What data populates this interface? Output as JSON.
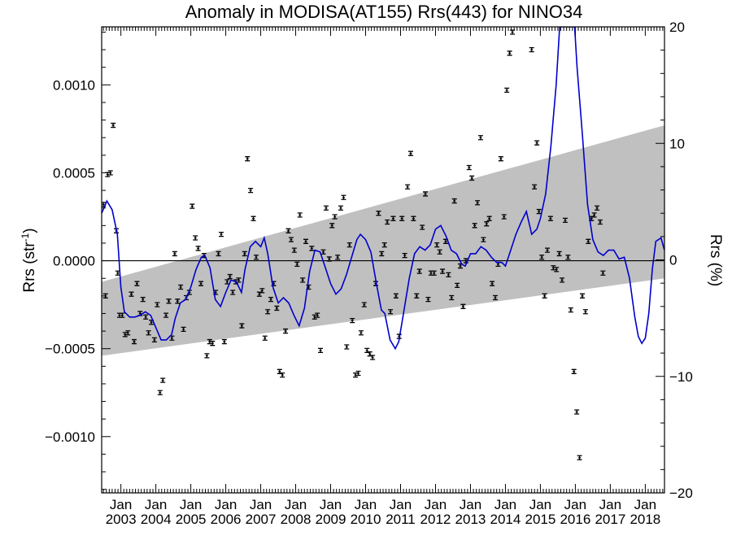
{
  "chart_data": {
    "type": "line",
    "title": "Anomaly in MODISA(AT155) Rrs(443) for NINO34",
    "ylabel": "Rrs (str",
    "ylabel_sup": "-1",
    "ylabel_close": ")",
    "y2label": "Rrs (%)",
    "xlim": [
      2002.45,
      2018.55
    ],
    "ylim": [
      -0.00132,
      0.00133
    ],
    "y2lim": [
      -20.0,
      20.0
    ],
    "grid": false,
    "legend": "none",
    "xticks": [
      {
        "x": 2003,
        "month": "Jan",
        "year": "2003"
      },
      {
        "x": 2004,
        "month": "Jan",
        "year": "2004"
      },
      {
        "x": 2005,
        "month": "Jan",
        "year": "2005"
      },
      {
        "x": 2006,
        "month": "Jan",
        "year": "2006"
      },
      {
        "x": 2007,
        "month": "Jan",
        "year": "2007"
      },
      {
        "x": 2008,
        "month": "Jan",
        "year": "2008"
      },
      {
        "x": 2009,
        "month": "Jan",
        "year": "2009"
      },
      {
        "x": 2010,
        "month": "Jan",
        "year": "2010"
      },
      {
        "x": 2011,
        "month": "Jan",
        "year": "2011"
      },
      {
        "x": 2012,
        "month": "Jan",
        "year": "2012"
      },
      {
        "x": 2013,
        "month": "Jan",
        "year": "2013"
      },
      {
        "x": 2014,
        "month": "Jan",
        "year": "2014"
      },
      {
        "x": 2015,
        "month": "Jan",
        "year": "2015"
      },
      {
        "x": 2016,
        "month": "Jan",
        "year": "2016"
      },
      {
        "x": 2017,
        "month": "Jan",
        "year": "2017"
      },
      {
        "x": 2018,
        "month": "Jan",
        "year": "2018"
      }
    ],
    "yticks": [
      {
        "v": 0.001,
        "label": "0.0010"
      },
      {
        "v": 0.0005,
        "label": "0.0005"
      },
      {
        "v": 0.0,
        "label": "0.0000"
      },
      {
        "v": -0.0005,
        "label": "−0.0005"
      },
      {
        "v": -0.001,
        "label": "−0.0010"
      }
    ],
    "y2ticks": [
      {
        "v": 20,
        "label": "20"
      },
      {
        "v": 10,
        "label": "10"
      },
      {
        "v": 0,
        "label": "0"
      },
      {
        "v": -10,
        "label": "−10"
      },
      {
        "v": -20,
        "label": "−20"
      }
    ],
    "band": {
      "x": [
        2002.45,
        2018.55
      ],
      "upper": [
        -0.00012,
        0.00077
      ],
      "lower": [
        -0.00054,
        -0.0001
      ],
      "color": "#c0c0c0"
    },
    "zero_line": 0.0,
    "smooth_color": "#0000cc",
    "smooth": [
      {
        "x": 2002.45,
        "y": 0.00027
      },
      {
        "x": 2002.6,
        "y": 0.00034
      },
      {
        "x": 2002.75,
        "y": 0.00029
      },
      {
        "x": 2002.9,
        "y": 0.00015
      },
      {
        "x": 2003.0,
        "y": -0.00015
      },
      {
        "x": 2003.1,
        "y": -0.00029
      },
      {
        "x": 2003.25,
        "y": -0.00032
      },
      {
        "x": 2003.4,
        "y": -0.00032
      },
      {
        "x": 2003.55,
        "y": -0.00031
      },
      {
        "x": 2003.7,
        "y": -0.00029
      },
      {
        "x": 2003.85,
        "y": -0.00031
      },
      {
        "x": 2004.0,
        "y": -0.00038
      },
      {
        "x": 2004.15,
        "y": -0.00045
      },
      {
        "x": 2004.3,
        "y": -0.00045
      },
      {
        "x": 2004.45,
        "y": -0.00042
      },
      {
        "x": 2004.55,
        "y": -0.00033
      },
      {
        "x": 2004.7,
        "y": -0.00024
      },
      {
        "x": 2004.85,
        "y": -0.00022
      },
      {
        "x": 2005.0,
        "y": -0.00015
      },
      {
        "x": 2005.15,
        "y": -5e-05
      },
      {
        "x": 2005.3,
        "y": 2e-05
      },
      {
        "x": 2005.4,
        "y": 3e-05
      },
      {
        "x": 2005.55,
        "y": -4e-05
      },
      {
        "x": 2005.7,
        "y": -0.00022
      },
      {
        "x": 2005.85,
        "y": -0.00026
      },
      {
        "x": 2006.0,
        "y": -0.00018
      },
      {
        "x": 2006.15,
        "y": -0.00011
      },
      {
        "x": 2006.3,
        "y": -0.00012
      },
      {
        "x": 2006.45,
        "y": -0.00018
      },
      {
        "x": 2006.55,
        "y": -5e-05
      },
      {
        "x": 2006.7,
        "y": 8e-05
      },
      {
        "x": 2006.85,
        "y": 0.00011
      },
      {
        "x": 2007.0,
        "y": 8e-05
      },
      {
        "x": 2007.1,
        "y": 0.00013
      },
      {
        "x": 2007.2,
        "y": 4e-05
      },
      {
        "x": 2007.35,
        "y": -0.00015
      },
      {
        "x": 2007.5,
        "y": -0.00024
      },
      {
        "x": 2007.65,
        "y": -0.00021
      },
      {
        "x": 2007.8,
        "y": -0.00024
      },
      {
        "x": 2007.95,
        "y": -0.00031
      },
      {
        "x": 2008.1,
        "y": -0.00037
      },
      {
        "x": 2008.25,
        "y": -0.00027
      },
      {
        "x": 2008.4,
        "y": -6e-05
      },
      {
        "x": 2008.55,
        "y": 6e-05
      },
      {
        "x": 2008.7,
        "y": 5e-05
      },
      {
        "x": 2008.85,
        "y": -4e-05
      },
      {
        "x": 2009.0,
        "y": -0.00013
      },
      {
        "x": 2009.15,
        "y": -0.00019
      },
      {
        "x": 2009.3,
        "y": -0.00016
      },
      {
        "x": 2009.45,
        "y": -8e-05
      },
      {
        "x": 2009.6,
        "y": 2e-05
      },
      {
        "x": 2009.75,
        "y": 0.00012
      },
      {
        "x": 2009.85,
        "y": 0.00015
      },
      {
        "x": 2010.0,
        "y": 0.00012
      },
      {
        "x": 2010.15,
        "y": 5e-05
      },
      {
        "x": 2010.3,
        "y": -0.00012
      },
      {
        "x": 2010.45,
        "y": -0.00028
      },
      {
        "x": 2010.55,
        "y": -0.0003
      },
      {
        "x": 2010.7,
        "y": -0.00045
      },
      {
        "x": 2010.85,
        "y": -0.0005
      },
      {
        "x": 2010.95,
        "y": -0.00046
      },
      {
        "x": 2011.1,
        "y": -0.00028
      },
      {
        "x": 2011.25,
        "y": -0.0001
      },
      {
        "x": 2011.4,
        "y": 4e-05
      },
      {
        "x": 2011.55,
        "y": 8e-05
      },
      {
        "x": 2011.7,
        "y": 6e-05
      },
      {
        "x": 2011.85,
        "y": 9e-05
      },
      {
        "x": 2012.0,
        "y": 0.00018
      },
      {
        "x": 2012.15,
        "y": 0.0002
      },
      {
        "x": 2012.3,
        "y": 0.00014
      },
      {
        "x": 2012.45,
        "y": 6e-05
      },
      {
        "x": 2012.6,
        "y": 4e-05
      },
      {
        "x": 2012.75,
        "y": -2e-05
      },
      {
        "x": 2012.85,
        "y": -3e-05
      },
      {
        "x": 2013.0,
        "y": 4e-05
      },
      {
        "x": 2013.15,
        "y": 4e-05
      },
      {
        "x": 2013.3,
        "y": 8e-05
      },
      {
        "x": 2013.45,
        "y": 6e-05
      },
      {
        "x": 2013.6,
        "y": 2e-05
      },
      {
        "x": 2013.75,
        "y": -1e-05
      },
      {
        "x": 2013.9,
        "y": -1e-05
      },
      {
        "x": 2014.0,
        "y": -3e-05
      },
      {
        "x": 2014.15,
        "y": 6e-05
      },
      {
        "x": 2014.3,
        "y": 0.00015
      },
      {
        "x": 2014.45,
        "y": 0.00022
      },
      {
        "x": 2014.6,
        "y": 0.00028
      },
      {
        "x": 2014.75,
        "y": 0.00015
      },
      {
        "x": 2014.9,
        "y": 0.00018
      },
      {
        "x": 2015.0,
        "y": 0.00024
      },
      {
        "x": 2015.15,
        "y": 0.00038
      },
      {
        "x": 2015.3,
        "y": 0.00065
      },
      {
        "x": 2015.45,
        "y": 0.001
      },
      {
        "x": 2015.55,
        "y": 0.00133
      },
      {
        "x": 2015.98,
        "y": 0.00133
      },
      {
        "x": 2016.05,
        "y": 0.0011
      },
      {
        "x": 2016.2,
        "y": 0.00072
      },
      {
        "x": 2016.35,
        "y": 0.00032
      },
      {
        "x": 2016.5,
        "y": 0.00012
      },
      {
        "x": 2016.65,
        "y": 5e-05
      },
      {
        "x": 2016.8,
        "y": 3e-05
      },
      {
        "x": 2016.95,
        "y": 6e-05
      },
      {
        "x": 2017.1,
        "y": 6e-05
      },
      {
        "x": 2017.25,
        "y": 1e-05
      },
      {
        "x": 2017.4,
        "y": 2e-05
      },
      {
        "x": 2017.55,
        "y": -0.0001
      },
      {
        "x": 2017.7,
        "y": -0.00032
      },
      {
        "x": 2017.8,
        "y": -0.00043
      },
      {
        "x": 2017.9,
        "y": -0.00047
      },
      {
        "x": 2018.0,
        "y": -0.00044
      },
      {
        "x": 2018.1,
        "y": -0.0003
      },
      {
        "x": 2018.2,
        "y": -5e-05
      },
      {
        "x": 2018.3,
        "y": 0.00011
      },
      {
        "x": 2018.45,
        "y": 0.00013
      },
      {
        "x": 2018.55,
        "y": 6e-05
      }
    ],
    "points": [
      {
        "x": 2002.5,
        "y": 0.00032
      },
      {
        "x": 2002.56,
        "y": -0.0002
      },
      {
        "x": 2002.62,
        "y": 0.00049
      },
      {
        "x": 2002.7,
        "y": 0.0005
      },
      {
        "x": 2002.78,
        "y": 0.00077
      },
      {
        "x": 2002.87,
        "y": 0.00017
      },
      {
        "x": 2002.91,
        "y": -7e-05
      },
      {
        "x": 2002.96,
        "y": -0.00031
      },
      {
        "x": 2003.04,
        "y": -0.00031
      },
      {
        "x": 2003.12,
        "y": -0.00042
      },
      {
        "x": 2003.2,
        "y": -0.00041
      },
      {
        "x": 2003.3,
        "y": -0.00019
      },
      {
        "x": 2003.38,
        "y": -0.00046
      },
      {
        "x": 2003.46,
        "y": -0.00013
      },
      {
        "x": 2003.55,
        "y": -0.0003
      },
      {
        "x": 2003.63,
        "y": -0.00022
      },
      {
        "x": 2003.71,
        "y": -0.00032
      },
      {
        "x": 2003.79,
        "y": -0.00041
      },
      {
        "x": 2003.87,
        "y": -0.00035
      },
      {
        "x": 2003.96,
        "y": -0.00045
      },
      {
        "x": 2004.04,
        "y": -0.00025
      },
      {
        "x": 2004.12,
        "y": -0.00075
      },
      {
        "x": 2004.2,
        "y": -0.00068
      },
      {
        "x": 2004.29,
        "y": -0.00031
      },
      {
        "x": 2004.37,
        "y": -0.00023
      },
      {
        "x": 2004.46,
        "y": -0.00044
      },
      {
        "x": 2004.54,
        "y": 4e-05
      },
      {
        "x": 2004.62,
        "y": -0.00023
      },
      {
        "x": 2004.71,
        "y": -0.00015
      },
      {
        "x": 2004.79,
        "y": -0.00039
      },
      {
        "x": 2004.87,
        "y": -0.00021
      },
      {
        "x": 2004.96,
        "y": -0.00018
      },
      {
        "x": 2005.04,
        "y": 0.00031
      },
      {
        "x": 2005.13,
        "y": 0.00013
      },
      {
        "x": 2005.21,
        "y": 7e-05
      },
      {
        "x": 2005.29,
        "y": -0.00013
      },
      {
        "x": 2005.38,
        "y": 3e-05
      },
      {
        "x": 2005.46,
        "y": -0.00054
      },
      {
        "x": 2005.54,
        "y": -0.00046
      },
      {
        "x": 2005.62,
        "y": -0.00047
      },
      {
        "x": 2005.71,
        "y": -0.00018
      },
      {
        "x": 2005.79,
        "y": 4e-05
      },
      {
        "x": 2005.87,
        "y": 0.00015
      },
      {
        "x": 2005.96,
        "y": -0.00046
      },
      {
        "x": 2006.04,
        "y": -0.00012
      },
      {
        "x": 2006.12,
        "y": -9e-05
      },
      {
        "x": 2006.2,
        "y": -0.00018
      },
      {
        "x": 2006.29,
        "y": -0.00012
      },
      {
        "x": 2006.37,
        "y": -0.00011
      },
      {
        "x": 2006.46,
        "y": -0.00037
      },
      {
        "x": 2006.54,
        "y": 4e-05
      },
      {
        "x": 2006.62,
        "y": 0.00058
      },
      {
        "x": 2006.71,
        "y": 0.0004
      },
      {
        "x": 2006.79,
        "y": 0.00024
      },
      {
        "x": 2006.87,
        "y": 2e-05
      },
      {
        "x": 2006.96,
        "y": -0.00019
      },
      {
        "x": 2007.04,
        "y": -0.00017
      },
      {
        "x": 2007.12,
        "y": -0.00044
      },
      {
        "x": 2007.2,
        "y": -0.00029
      },
      {
        "x": 2007.29,
        "y": -0.00022
      },
      {
        "x": 2007.37,
        "y": -0.00013
      },
      {
        "x": 2007.46,
        "y": -0.00027
      },
      {
        "x": 2007.54,
        "y": -0.00063
      },
      {
        "x": 2007.62,
        "y": -0.00065
      },
      {
        "x": 2007.71,
        "y": -0.0004
      },
      {
        "x": 2007.79,
        "y": 0.00017
      },
      {
        "x": 2007.87,
        "y": 0.00012
      },
      {
        "x": 2007.96,
        "y": 6e-05
      },
      {
        "x": 2008.04,
        "y": -2e-05
      },
      {
        "x": 2008.12,
        "y": 0.00026
      },
      {
        "x": 2008.2,
        "y": -0.00011
      },
      {
        "x": 2008.29,
        "y": 0.00011
      },
      {
        "x": 2008.37,
        "y": -0.00015
      },
      {
        "x": 2008.46,
        "y": 7e-05
      },
      {
        "x": 2008.54,
        "y": -0.00032
      },
      {
        "x": 2008.62,
        "y": -0.00031
      },
      {
        "x": 2008.71,
        "y": -0.00051
      },
      {
        "x": 2008.79,
        "y": 5e-05
      },
      {
        "x": 2008.87,
        "y": 0.0003
      },
      {
        "x": 2008.96,
        "y": 1e-05
      },
      {
        "x": 2009.04,
        "y": 0.0002
      },
      {
        "x": 2009.12,
        "y": 0.00025
      },
      {
        "x": 2009.2,
        "y": 2e-05
      },
      {
        "x": 2009.29,
        "y": 0.0003
      },
      {
        "x": 2009.37,
        "y": 0.00036
      },
      {
        "x": 2009.46,
        "y": -0.00049
      },
      {
        "x": 2009.54,
        "y": 9e-05
      },
      {
        "x": 2009.62,
        "y": -0.00034
      },
      {
        "x": 2009.71,
        "y": -0.00065
      },
      {
        "x": 2009.79,
        "y": -0.00064
      },
      {
        "x": 2009.87,
        "y": -0.00041
      },
      {
        "x": 2009.96,
        "y": -0.00025
      },
      {
        "x": 2010.04,
        "y": -0.00051
      },
      {
        "x": 2010.12,
        "y": -0.00053
      },
      {
        "x": 2010.2,
        "y": -0.00055
      },
      {
        "x": 2010.29,
        "y": -0.00013
      },
      {
        "x": 2010.37,
        "y": 0.00027
      },
      {
        "x": 2010.46,
        "y": 4e-05
      },
      {
        "x": 2010.54,
        "y": 9e-05
      },
      {
        "x": 2010.62,
        "y": 0.00022
      },
      {
        "x": 2010.71,
        "y": -0.00029
      },
      {
        "x": 2010.79,
        "y": 0.00024
      },
      {
        "x": 2010.87,
        "y": -0.0002
      },
      {
        "x": 2010.96,
        "y": -0.00043
      },
      {
        "x": 2011.04,
        "y": 0.00024
      },
      {
        "x": 2011.12,
        "y": 3e-05
      },
      {
        "x": 2011.2,
        "y": 0.00042
      },
      {
        "x": 2011.29,
        "y": 0.00061
      },
      {
        "x": 2011.37,
        "y": 0.00024
      },
      {
        "x": 2011.46,
        "y": -0.0002
      },
      {
        "x": 2011.54,
        "y": -6e-05
      },
      {
        "x": 2011.62,
        "y": 0.00019
      },
      {
        "x": 2011.71,
        "y": 0.00038
      },
      {
        "x": 2011.79,
        "y": -0.00022
      },
      {
        "x": 2011.87,
        "y": -7e-05
      },
      {
        "x": 2011.96,
        "y": -7e-05
      },
      {
        "x": 2012.04,
        "y": 9e-05
      },
      {
        "x": 2012.12,
        "y": 5e-05
      },
      {
        "x": 2012.2,
        "y": -6e-05
      },
      {
        "x": 2012.29,
        "y": 0.00011
      },
      {
        "x": 2012.37,
        "y": -8e-05
      },
      {
        "x": 2012.46,
        "y": -0.00021
      },
      {
        "x": 2012.54,
        "y": 0.00034
      },
      {
        "x": 2012.62,
        "y": -0.00014
      },
      {
        "x": 2012.71,
        "y": -3e-05
      },
      {
        "x": 2012.79,
        "y": -0.00026
      },
      {
        "x": 2012.87,
        "y": 0.0
      },
      {
        "x": 2012.96,
        "y": 0.00053
      },
      {
        "x": 2013.04,
        "y": 0.00047
      },
      {
        "x": 2013.12,
        "y": 0.0002
      },
      {
        "x": 2013.2,
        "y": 0.00033
      },
      {
        "x": 2013.29,
        "y": 0.0007
      },
      {
        "x": 2013.37,
        "y": 0.00012
      },
      {
        "x": 2013.46,
        "y": 0.00021
      },
      {
        "x": 2013.54,
        "y": 0.00024
      },
      {
        "x": 2013.62,
        "y": -0.00013
      },
      {
        "x": 2013.71,
        "y": -0.00021
      },
      {
        "x": 2013.79,
        "y": -2e-05
      },
      {
        "x": 2013.87,
        "y": 0.00058
      },
      {
        "x": 2013.96,
        "y": 0.00025
      },
      {
        "x": 2014.04,
        "y": 0.00097
      },
      {
        "x": 2014.12,
        "y": 0.00118
      },
      {
        "x": 2014.2,
        "y": 0.0013
      },
      {
        "x": 2014.75,
        "y": 0.0012
      },
      {
        "x": 2014.83,
        "y": 0.00042
      },
      {
        "x": 2014.9,
        "y": 0.00067
      },
      {
        "x": 2014.96,
        "y": 0.00028
      },
      {
        "x": 2015.04,
        "y": 2e-05
      },
      {
        "x": 2015.12,
        "y": -0.0002
      },
      {
        "x": 2015.2,
        "y": 6e-05
      },
      {
        "x": 2015.29,
        "y": 0.00024
      },
      {
        "x": 2015.37,
        "y": -4e-05
      },
      {
        "x": 2015.46,
        "y": -5e-05
      },
      {
        "x": 2015.54,
        "y": 4e-05
      },
      {
        "x": 2015.62,
        "y": -0.00011
      },
      {
        "x": 2015.71,
        "y": 0.00023
      },
      {
        "x": 2015.79,
        "y": 2e-05
      },
      {
        "x": 2015.87,
        "y": -0.00028
      },
      {
        "x": 2015.96,
        "y": -0.00063
      },
      {
        "x": 2016.04,
        "y": -0.00086
      },
      {
        "x": 2016.12,
        "y": -0.00112
      },
      {
        "x": 2016.2,
        "y": -0.0002
      },
      {
        "x": 2016.29,
        "y": -0.00029
      },
      {
        "x": 2016.37,
        "y": 0.00011
      },
      {
        "x": 2016.46,
        "y": 0.00024
      },
      {
        "x": 2016.54,
        "y": 0.00026
      },
      {
        "x": 2016.62,
        "y": 0.0003
      },
      {
        "x": 2016.71,
        "y": 0.00022
      },
      {
        "x": 2016.79,
        "y": -7e-05
      }
    ]
  }
}
